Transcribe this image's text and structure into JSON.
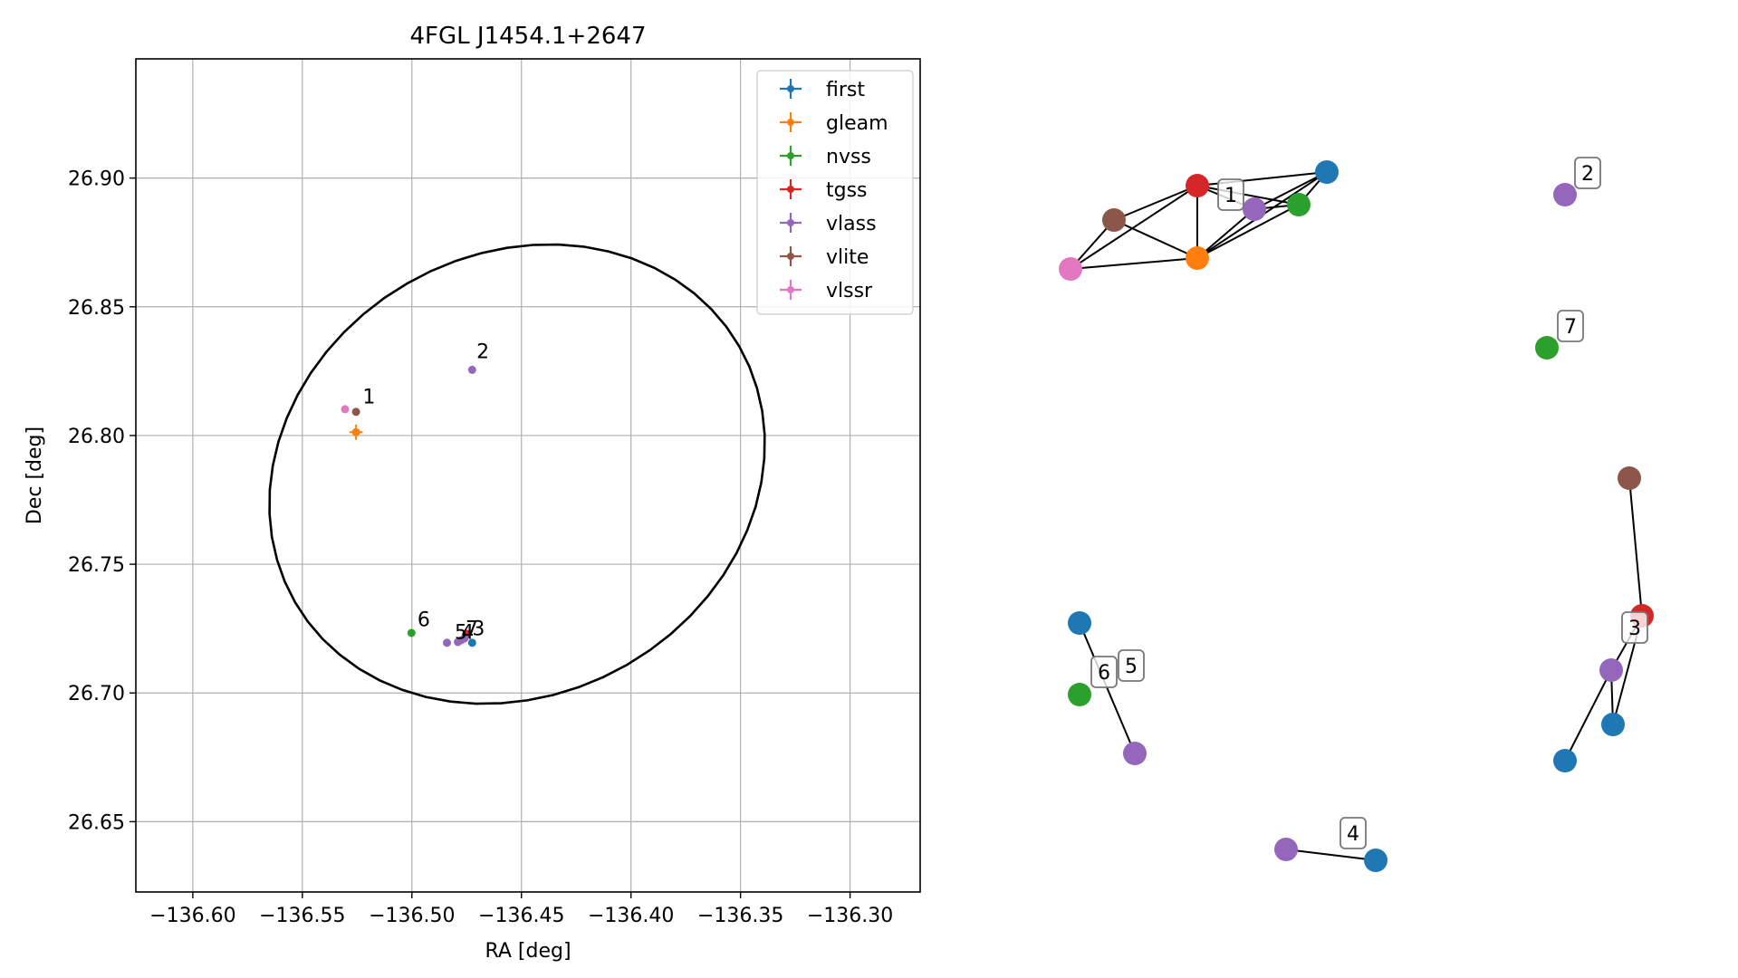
{
  "chart_data": [
    {
      "type": "scatter",
      "title": "4FGL J1454.1+2647",
      "xlabel": "RA [deg]",
      "ylabel": "Dec [deg]",
      "xlim": [
        -136.626,
        -136.268
      ],
      "ylim": [
        26.6227,
        26.9463
      ],
      "xticks": [
        -136.6,
        -136.55,
        -136.5,
        -136.45,
        -136.4,
        -136.35,
        -136.3
      ],
      "xtick_labels": [
        "−136.60",
        "−136.55",
        "−136.50",
        "−136.45",
        "−136.40",
        "−136.35",
        "−136.30"
      ],
      "yticks": [
        26.65,
        26.7,
        26.75,
        26.8,
        26.85,
        26.9
      ],
      "ytick_labels": [
        "26.65",
        "26.70",
        "26.75",
        "26.80",
        "26.85",
        "26.90"
      ],
      "grid": true,
      "legend_position": "top-right",
      "ellipse": {
        "center_ra": -136.452,
        "center_dec": 26.785,
        "semi_axis_ra": 0.117,
        "semi_axis_dec": 0.0855,
        "angle_deg": -30,
        "color": "#000000"
      },
      "series": [
        {
          "name": "first",
          "color": "#1f77b4",
          "points": [
            [
              -136.4725,
              26.7195
            ]
          ]
        },
        {
          "name": "gleam",
          "color": "#ff7f0e",
          "points": [
            [
              -136.5255,
              26.8013
            ]
          ],
          "error_ra": 0.003,
          "error_dec": 0.003
        },
        {
          "name": "nvss",
          "color": "#2ca02c",
          "points": [
            [
              -136.5002,
              26.7233
            ]
          ]
        },
        {
          "name": "tgss",
          "color": "#d62728",
          "points": [
            [
              -136.475,
              26.723
            ]
          ]
        },
        {
          "name": "vlass",
          "color": "#9467bd",
          "points": [
            [
              -136.4725,
              26.8255
            ],
            [
              -136.484,
              26.7195
            ],
            [
              -136.479,
              26.7198
            ],
            [
              -136.4775,
              26.7205
            ],
            [
              -136.476,
              26.7212
            ]
          ]
        },
        {
          "name": "vlite",
          "color": "#8c564b",
          "points": [
            [
              -136.5255,
              26.8092
            ]
          ]
        },
        {
          "name": "vlssr",
          "color": "#e377c2",
          "points": [
            [
              -136.5305,
              26.8102
            ]
          ]
        }
      ],
      "annotations": [
        {
          "text": "1",
          "x": -136.5225,
          "y": 26.8125
        },
        {
          "text": "2",
          "x": -136.4705,
          "y": 26.83
        },
        {
          "text": "6",
          "x": -136.4975,
          "y": 26.726
        },
        {
          "text": "5",
          "x": -136.4805,
          "y": 26.721
        },
        {
          "text": "4",
          "x": -136.4775,
          "y": 26.721
        },
        {
          "text": "7",
          "x": -136.4755,
          "y": 26.7225
        },
        {
          "text": "3",
          "x": -136.4725,
          "y": 26.7225
        }
      ]
    },
    {
      "type": "network",
      "nodes": [
        {
          "id": "n1",
          "color": "#d62728"
        },
        {
          "id": "n2",
          "color": "#1f77b4"
        },
        {
          "id": "n3",
          "color": "#8c564b"
        },
        {
          "id": "n4",
          "color": "#9467bd"
        },
        {
          "id": "n5",
          "color": "#2ca02c"
        },
        {
          "id": "n6",
          "color": "#ff7f0e"
        },
        {
          "id": "n7",
          "color": "#e377c2"
        },
        {
          "id": "n8",
          "color": "#9467bd"
        },
        {
          "id": "n9",
          "color": "#2ca02c"
        },
        {
          "id": "n10",
          "color": "#8c564b"
        },
        {
          "id": "n11",
          "color": "#d62728"
        },
        {
          "id": "n12",
          "color": "#9467bd"
        },
        {
          "id": "n13",
          "color": "#1f77b4"
        },
        {
          "id": "n14",
          "color": "#1f77b4"
        },
        {
          "id": "n15",
          "color": "#1f77b4"
        },
        {
          "id": "n16",
          "color": "#2ca02c"
        },
        {
          "id": "n17",
          "color": "#9467bd"
        },
        {
          "id": "n18",
          "color": "#9467bd"
        },
        {
          "id": "n19",
          "color": "#1f77b4"
        }
      ],
      "edges": [
        [
          "n1",
          "n2"
        ],
        [
          "n1",
          "n3"
        ],
        [
          "n1",
          "n4"
        ],
        [
          "n1",
          "n5"
        ],
        [
          "n1",
          "n6"
        ],
        [
          "n1",
          "n7"
        ],
        [
          "n2",
          "n4"
        ],
        [
          "n2",
          "n5"
        ],
        [
          "n2",
          "n6"
        ],
        [
          "n3",
          "n6"
        ],
        [
          "n3",
          "n7"
        ],
        [
          "n4",
          "n5"
        ],
        [
          "n4",
          "n6"
        ],
        [
          "n5",
          "n6"
        ],
        [
          "n6",
          "n7"
        ],
        [
          "n10",
          "n11"
        ],
        [
          "n11",
          "n14"
        ],
        [
          "n11",
          "n12"
        ],
        [
          "n12",
          "n14"
        ],
        [
          "n12",
          "n13"
        ],
        [
          "n15",
          "n17"
        ],
        [
          "n18",
          "n19"
        ]
      ],
      "labels": [
        "1",
        "2",
        "7",
        "3",
        "6",
        "5",
        "4"
      ]
    }
  ]
}
